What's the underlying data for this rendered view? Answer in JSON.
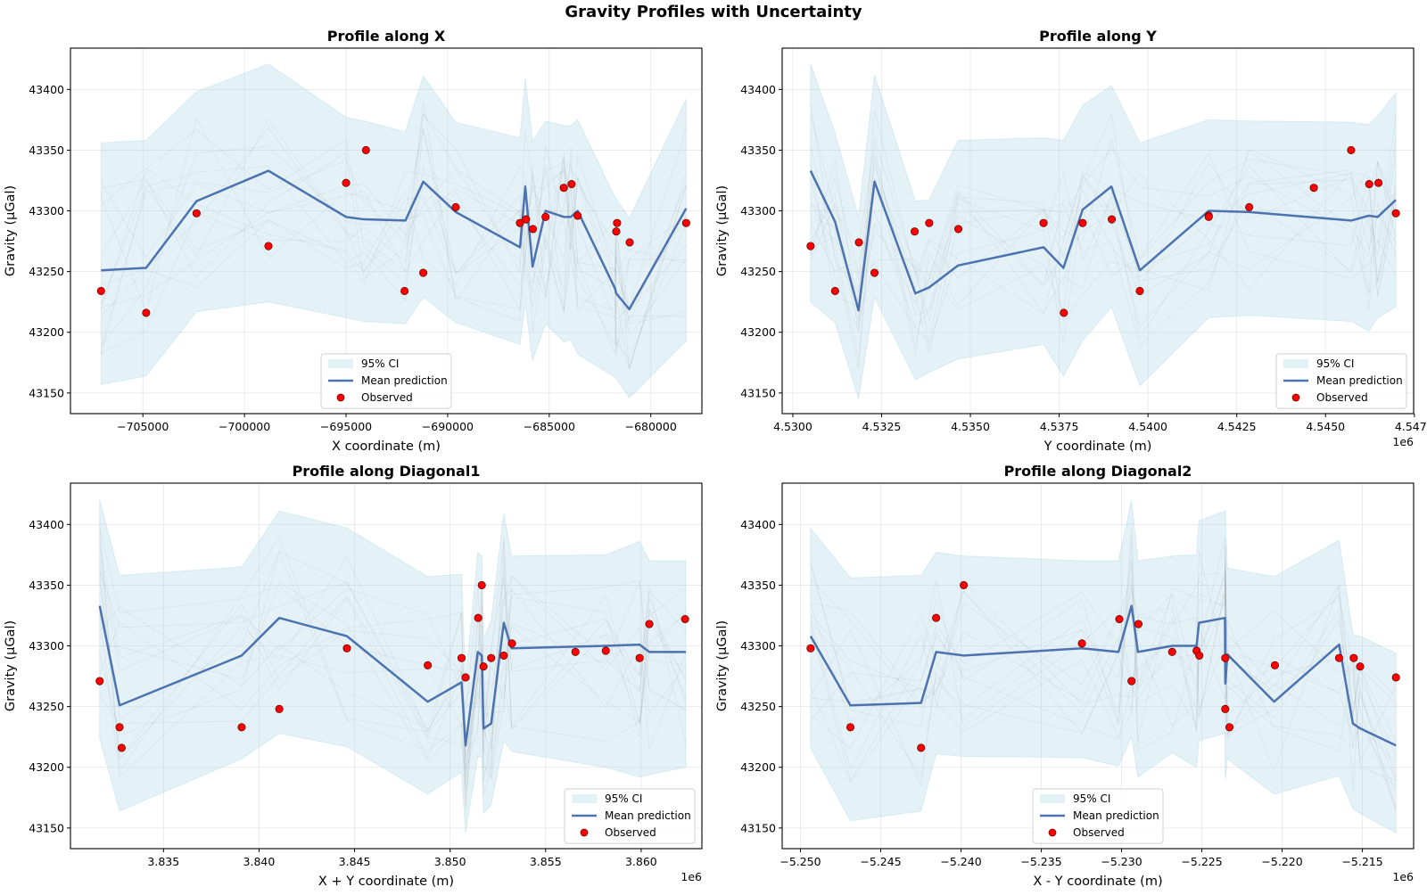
{
  "figure": {
    "title": "Gravity Profiles with Uncertainty"
  },
  "legend": {
    "ci": "95% CI",
    "mean": "Mean prediction",
    "observed": "Observed"
  },
  "colors": {
    "ci_fill": "#add8e6",
    "mean": "#4c72b0",
    "observed": "#ff0000",
    "samples": "#808080"
  },
  "chart_data": [
    {
      "type": "line",
      "title": "Profile along X",
      "xlabel": "X coordinate (m)",
      "ylabel": "Gravity (μGal)",
      "offset_text": "",
      "legend_position": "lower center",
      "grid": true,
      "xlim": [
        -708565,
        -677485
      ],
      "ylim": [
        43133,
        43434
      ],
      "xticks": [
        -705000,
        -700000,
        -695000,
        -690000,
        -685000,
        -680000
      ],
      "xtick_labels": [
        "−705000",
        "−700000",
        "−695000",
        "−690000",
        "−685000",
        "−680000"
      ],
      "yticks": [
        43150,
        43200,
        43250,
        43300,
        43350,
        43400
      ],
      "ytick_labels": [
        "43150",
        "43200",
        "43250",
        "43300",
        "43350",
        "43400"
      ],
      "line_x": [
        -707060,
        -704840,
        -702360,
        -698820,
        -695000,
        -694120,
        -692080,
        -691200,
        -689600,
        -686440,
        -686180,
        -685820,
        -685180,
        -684280,
        -683940,
        -683600,
        -681760,
        -681700,
        -681060,
        -678260
      ],
      "mean": [
        43251,
        43253,
        43308,
        43333,
        43295,
        43293,
        43292,
        43324,
        43299,
        43270,
        43320,
        43254,
        43300,
        43295,
        43295,
        43300,
        43236,
        43232,
        43219,
        43302
      ],
      "ci_upper": [
        43356,
        43358,
        43398,
        43421,
        43377,
        43374,
        43365,
        43411,
        43373,
        43360,
        43409,
        43357,
        43374,
        43370,
        43370,
        43375,
        43311,
        43310,
        43294,
        43392
      ],
      "ci_lower": [
        43157,
        43164,
        43217,
        43225,
        43212,
        43209,
        43207,
        43229,
        43208,
        43190,
        43224,
        43177,
        43207,
        43192,
        43194,
        43182,
        43163,
        43162,
        43146,
        43193
      ],
      "observed_x": [
        -707060,
        -704840,
        -702360,
        -698820,
        -695000,
        -694020,
        -692120,
        -691200,
        -689600,
        -686440,
        -686140,
        -685800,
        -685180,
        -684280,
        -683900,
        -683600,
        -681660,
        -681700,
        -681040,
        -678260
      ],
      "observed_y": [
        43234,
        43216,
        43298,
        43271,
        43323,
        43350,
        43234,
        43249,
        43303,
        43290,
        43293,
        43285,
        43295,
        43319,
        43322,
        43296,
        43290,
        43283,
        43274,
        43290
      ]
    },
    {
      "type": "line",
      "title": "Profile along Y",
      "xlabel": "Y coordinate (m)",
      "ylabel": "Gravity (μGal)",
      "offset_text": "1e6",
      "legend_position": "lower right",
      "grid": true,
      "xlim": [
        4.5297,
        4.54748
      ],
      "ylim": [
        43133,
        43434
      ],
      "xticks": [
        4.53,
        4.5325,
        4.535,
        4.5375,
        4.54,
        4.5425,
        4.545,
        4.5475
      ],
      "xtick_labels": [
        "4.5300",
        "4.5325",
        "4.5350",
        "4.5375",
        "4.5400",
        "4.5425",
        "4.5450",
        "4.5475"
      ],
      "yticks": [
        43150,
        43200,
        43250,
        43300,
        43350,
        43400
      ],
      "ytick_labels": [
        "43150",
        "43200",
        "43250",
        "43300",
        "43350",
        "43400"
      ],
      "line_x": [
        4.5305,
        4.53119,
        4.53185,
        4.5323,
        4.53345,
        4.53384,
        4.53465,
        4.53706,
        4.53762,
        4.53816,
        4.53897,
        4.53977,
        4.54171,
        4.54285,
        4.54572,
        4.54622,
        4.54647,
        4.54698
      ],
      "mean": [
        43333,
        43291,
        43218,
        43324,
        43232,
        43237,
        43255,
        43270,
        43253,
        43301,
        43320,
        43251,
        43300,
        43299,
        43292,
        43296,
        43295,
        43309
      ],
      "ci_upper": [
        43421,
        43364,
        43295,
        43412,
        43308,
        43309,
        43358,
        43360,
        43358,
        43387,
        43403,
        43356,
        43375,
        43374,
        43373,
        43371,
        43378,
        43397
      ],
      "ci_lower": [
        43225,
        43208,
        43145,
        43229,
        43161,
        43167,
        43178,
        43190,
        43164,
        43193,
        43221,
        43156,
        43212,
        43214,
        43209,
        43201,
        43212,
        43221
      ],
      "observed_x": [
        4.5305,
        4.53119,
        4.53186,
        4.5323,
        4.53343,
        4.53384,
        4.53466,
        4.53706,
        4.53763,
        4.53816,
        4.53898,
        4.53977,
        4.54171,
        4.54171,
        4.54285,
        4.54467,
        4.54572,
        4.54623,
        4.54649,
        4.54698
      ],
      "observed_y": [
        43271,
        43234,
        43274,
        43249,
        43283,
        43290,
        43285,
        43290,
        43216,
        43290,
        43293,
        43234,
        43296,
        43295,
        43303,
        43319,
        43350,
        43322,
        43323,
        43298
      ]
    },
    {
      "type": "line",
      "title": "Profile along Diagonal1",
      "xlabel": "X + Y coordinate (m)",
      "ylabel": "Gravity (μGal)",
      "offset_text": "1e6",
      "legend_position": "lower right",
      "grid": true,
      "xlim": [
        3.83013,
        3.86318
      ],
      "ylim": [
        43133,
        43434
      ],
      "xticks": [
        3.835,
        3.84,
        3.845,
        3.85,
        3.855,
        3.86
      ],
      "xtick_labels": [
        "3.835",
        "3.840",
        "3.845",
        "3.850",
        "3.855",
        "3.860"
      ],
      "yticks": [
        43150,
        43200,
        43250,
        43300,
        43350,
        43400
      ],
      "ytick_labels": [
        "43150",
        "43200",
        "43250",
        "43300",
        "43350",
        "43400"
      ],
      "line_x": [
        3.83166,
        3.8327,
        3.83909,
        3.84106,
        3.8446,
        3.84883,
        3.8506,
        3.85081,
        3.85145,
        3.85166,
        3.85175,
        3.85215,
        3.85281,
        3.85322,
        3.85815,
        3.85992,
        3.86043,
        3.86234
      ],
      "mean": [
        43333,
        43251,
        43292,
        43323,
        43308,
        43254,
        43270,
        43218,
        43295,
        43292,
        43232,
        43236,
        43319,
        43298,
        43300,
        43301,
        43295,
        43295
      ],
      "ci_upper": [
        43420,
        43358,
        43365,
        43411,
        43397,
        43357,
        43359,
        43272,
        43377,
        43374,
        43306,
        43321,
        43409,
        43374,
        43375,
        43386,
        43370,
        43370
      ],
      "ci_lower": [
        43224,
        43164,
        43207,
        43228,
        43217,
        43178,
        43196,
        43146,
        43209,
        43208,
        43162,
        43169,
        43222,
        43213,
        43200,
        43192,
        43194,
        43200
      ],
      "observed_x": [
        3.83166,
        3.8327,
        3.83281,
        3.83909,
        3.84106,
        3.8446,
        3.84883,
        3.8506,
        3.85081,
        3.85147,
        3.85166,
        3.85175,
        3.85215,
        3.85281,
        3.85324,
        3.85656,
        3.85815,
        3.85992,
        3.86043,
        3.8623
      ],
      "observed_y": [
        43271,
        43233,
        43216,
        43233,
        43248,
        43298,
        43284,
        43290,
        43274,
        43323,
        43350,
        43283,
        43290,
        43292,
        43302,
        43295,
        43296,
        43290,
        43318,
        43322
      ]
    },
    {
      "type": "line",
      "title": "Profile along Diagonal2",
      "xlabel": "X - Y coordinate (m)",
      "ylabel": "Gravity (μGal)",
      "offset_text": "1e6",
      "legend_position": "lower center",
      "grid": true,
      "xlim": [
        -5.25114,
        -5.21181
      ],
      "ylim": [
        43133,
        43434
      ],
      "xticks": [
        -5.25,
        -5.245,
        -5.24,
        -5.235,
        -5.23,
        -5.225,
        -5.22,
        -5.215
      ],
      "xtick_labels": [
        "−5.250",
        "−5.245",
        "−5.240",
        "−5.235",
        "−5.230",
        "−5.225",
        "−5.220",
        "−5.215"
      ],
      "yticks": [
        43150,
        43200,
        43250,
        43300,
        43350,
        43400
      ],
      "ytick_labels": [
        "43150",
        "43200",
        "43250",
        "43300",
        "43350",
        "43400"
      ],
      "line_x": [
        -5.24937,
        -5.24689,
        -5.24249,
        -5.24155,
        -5.23983,
        -5.23247,
        -5.23019,
        -5.22938,
        -5.22898,
        -5.22685,
        -5.22533,
        -5.22518,
        -5.22356,
        -5.22354,
        -5.22341,
        -5.2205,
        -5.21645,
        -5.21559,
        -5.21514,
        -5.21291
      ],
      "mean": [
        43308,
        43251,
        43253,
        43295,
        43292,
        43298,
        43295,
        43333,
        43295,
        43300,
        43300,
        43319,
        43323,
        43269,
        43293,
        43254,
        43301,
        43236,
        43232,
        43218
      ],
      "ci_upper": [
        43397,
        43356,
        43358,
        43377,
        43374,
        43370,
        43370,
        43420,
        43370,
        43374,
        43375,
        43403,
        43411,
        43411,
        43364,
        43357,
        43387,
        43309,
        43308,
        43294
      ],
      "ci_lower": [
        43216,
        43156,
        43164,
        43211,
        43209,
        43208,
        43201,
        43225,
        43192,
        43212,
        43200,
        43222,
        43228,
        43190,
        43207,
        43178,
        43193,
        43166,
        43162,
        43146
      ],
      "observed_x": [
        -5.24937,
        -5.24689,
        -5.24249,
        -5.24155,
        -5.23983,
        -5.23247,
        -5.23014,
        -5.22938,
        -5.22895,
        -5.22685,
        -5.22533,
        -5.22516,
        -5.22354,
        -5.22354,
        -5.22328,
        -5.22045,
        -5.21645,
        -5.21554,
        -5.21514,
        -5.21291
      ],
      "observed_y": [
        43298,
        43233,
        43216,
        43323,
        43350,
        43302,
        43322,
        43271,
        43318,
        43295,
        43296,
        43292,
        43290,
        43248,
        43233,
        43284,
        43290,
        43290,
        43283,
        43274
      ]
    }
  ]
}
